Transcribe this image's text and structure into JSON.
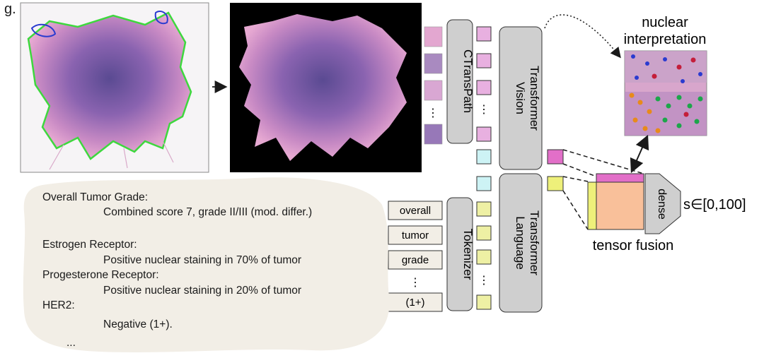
{
  "panel_label": "g.",
  "encoders": {
    "ctranspath": "CTransPath",
    "vision_line1": "Vision",
    "vision_line2": "Transformer",
    "tokenizer": "Tokenizer",
    "language_line1": "Language",
    "language_line2": "Transformer"
  },
  "nuclear": {
    "title_line1": "nuclear",
    "title_line2": "interpretation"
  },
  "fusion": {
    "label": "tensor fusion",
    "dense": "dense",
    "output": "s∈[0,100]"
  },
  "tokens": [
    "overall",
    "tumor",
    "grade",
    "⋮",
    "(1+)"
  ],
  "report": {
    "lines": [
      {
        "text": "Overall Tumor Grade:",
        "indent": 0
      },
      {
        "text": "Combined score 7, grade II/III (mod. differ.)",
        "indent": 1
      },
      {
        "text": "Estrogen Receptor:",
        "indent": 0
      },
      {
        "text": "Positive nuclear staining in 70% of tumor",
        "indent": 1
      },
      {
        "text": "Progesterone Receptor:",
        "indent": 0
      },
      {
        "text": "Positive nuclear staining in 20% of tumor",
        "indent": 1
      },
      {
        "text": "HER2:",
        "indent": 0
      },
      {
        "text": "Negative (1+).",
        "indent": 1
      },
      {
        "text": "...",
        "indent": 2
      }
    ]
  },
  "colors": {
    "gray_box": "#cfcfcf",
    "vision_token": "#e8b0e0",
    "cls_token": "#cdf3f5",
    "text_token": "#eef0a4",
    "fusion_orange": "#f9c09a",
    "fusion_pink": "#e26fc8",
    "fusion_yellow": "#eef07a",
    "report_bg": "#f2eee6",
    "tissue": "#b870b8",
    "tissue_dark": "#6a4a98",
    "outline_green": "#3ed83e"
  }
}
